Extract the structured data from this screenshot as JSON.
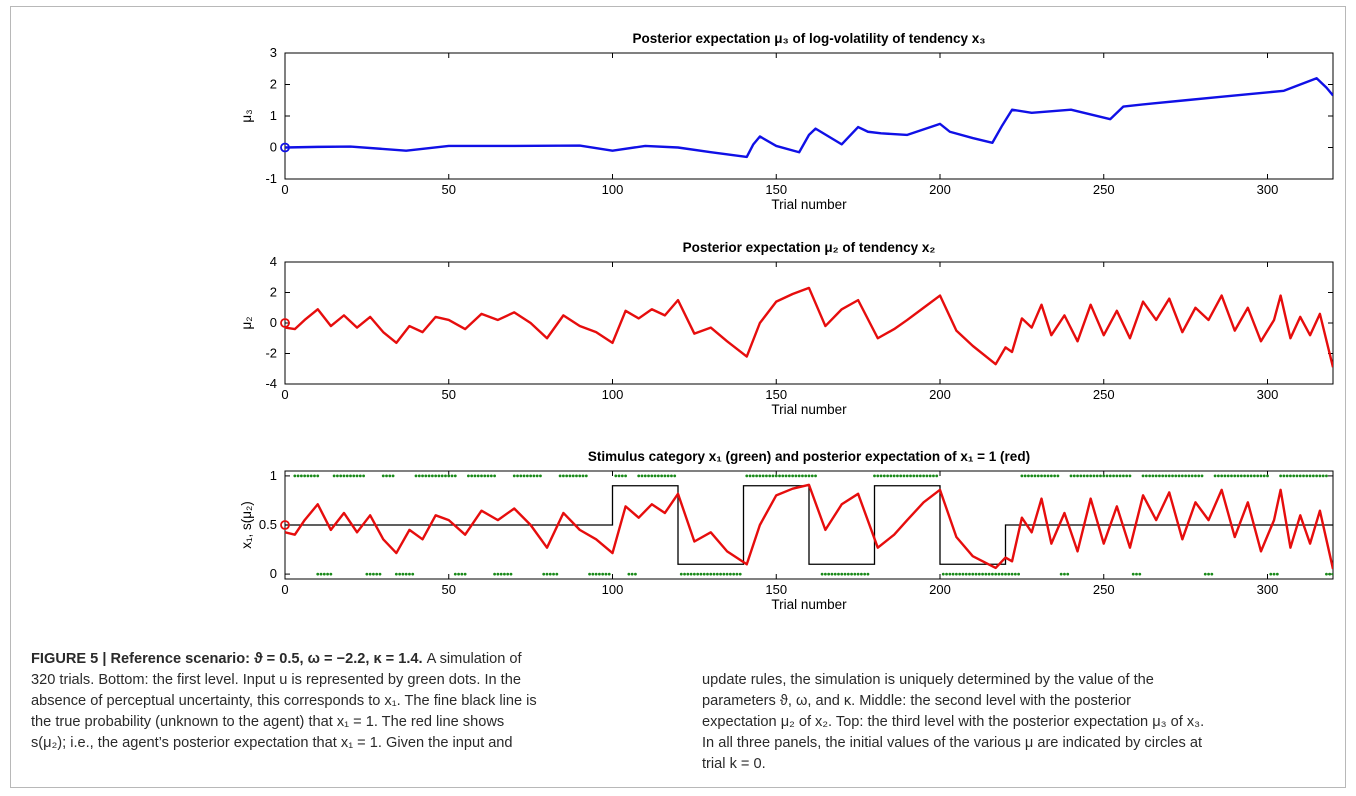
{
  "panels": [
    {
      "id": "mu3",
      "title": "Posterior expectation μ₃ of log-volatility of tendency x₃",
      "ylabel": "μ₃",
      "xlabel": "Trial number",
      "xlim": [
        0,
        320
      ],
      "ylim": [
        -1,
        3
      ],
      "xticks": [
        0,
        50,
        100,
        150,
        200,
        250,
        300
      ],
      "yticks": [
        -1,
        0,
        1,
        2,
        3
      ],
      "series_color": "#1010e6",
      "initial_value": 0,
      "chart_data": {
        "type": "line",
        "x": [
          0,
          10,
          20,
          37,
          50,
          70,
          90,
          100,
          110,
          120,
          130,
          141,
          143,
          145,
          150,
          157,
          160,
          162,
          170,
          175,
          178,
          182,
          190,
          200,
          203,
          210,
          216,
          219,
          222,
          228,
          240,
          252,
          256,
          265,
          275,
          285,
          295,
          305,
          310,
          315,
          318,
          320
        ],
        "y": [
          0,
          0.02,
          0.03,
          -0.1,
          0.05,
          0.05,
          0.06,
          -0.1,
          0.05,
          0.0,
          -0.15,
          -0.3,
          0.1,
          0.35,
          0.05,
          -0.15,
          0.4,
          0.6,
          0.1,
          0.65,
          0.5,
          0.45,
          0.4,
          0.75,
          0.5,
          0.3,
          0.15,
          0.7,
          1.2,
          1.1,
          1.2,
          0.9,
          1.3,
          1.4,
          1.5,
          1.6,
          1.7,
          1.8,
          2.0,
          2.2,
          1.9,
          1.65
        ]
      }
    },
    {
      "id": "mu2",
      "title": "Posterior expectation μ₂ of tendency x₂",
      "ylabel": "μ₂",
      "xlabel": "Trial number",
      "xlim": [
        0,
        320
      ],
      "ylim": [
        -4,
        4
      ],
      "xticks": [
        0,
        50,
        100,
        150,
        200,
        250,
        300
      ],
      "yticks": [
        -4,
        -2,
        0,
        2,
        4
      ],
      "series_color": "#e60d0d",
      "initial_value": 0,
      "chart_data": {
        "type": "line",
        "x": [
          0,
          3,
          6,
          10,
          14,
          18,
          22,
          26,
          30,
          34,
          38,
          42,
          46,
          50,
          55,
          60,
          65,
          70,
          75,
          80,
          85,
          90,
          95,
          100,
          104,
          108,
          112,
          116,
          120,
          125,
          130,
          135,
          141,
          145,
          150,
          155,
          160,
          165,
          170,
          175,
          181,
          186,
          190,
          195,
          200,
          205,
          210,
          217,
          220,
          222,
          225,
          228,
          231,
          234,
          238,
          242,
          246,
          250,
          254,
          258,
          262,
          266,
          270,
          274,
          278,
          282,
          286,
          290,
          294,
          298,
          302,
          304,
          307,
          310,
          313,
          316,
          320
        ],
        "y": [
          -0.3,
          -0.4,
          0.2,
          0.9,
          -0.2,
          0.5,
          -0.3,
          0.4,
          -0.6,
          -1.3,
          -0.2,
          -0.6,
          0.4,
          0.2,
          -0.4,
          0.6,
          0.2,
          0.7,
          0.0,
          -1.0,
          0.5,
          -0.2,
          -0.6,
          -1.3,
          0.8,
          0.3,
          0.9,
          0.5,
          1.5,
          -0.7,
          -0.3,
          -1.2,
          -2.2,
          0.0,
          1.4,
          1.9,
          2.3,
          -0.2,
          0.9,
          1.5,
          -1.0,
          -0.4,
          0.2,
          1.0,
          1.8,
          -0.5,
          -1.5,
          -2.7,
          -1.6,
          -1.9,
          0.3,
          -0.3,
          1.2,
          -0.8,
          0.5,
          -1.2,
          1.2,
          -0.8,
          0.8,
          -1.0,
          1.4,
          0.2,
          1.6,
          -0.6,
          1.0,
          0.2,
          1.8,
          -0.5,
          1.0,
          -1.2,
          0.2,
          1.8,
          -1.0,
          0.4,
          -0.8,
          0.6,
          -2.9
        ]
      }
    },
    {
      "id": "x1",
      "title": "Stimulus category x₁ (green) and posterior expectation of x₁ = 1 (red)",
      "ylabel": "x₁, s(μ₂)",
      "xlabel": "Trial number",
      "xlim": [
        0,
        320
      ],
      "ylim": [
        -0.05,
        1.05
      ],
      "xticks": [
        0,
        50,
        100,
        150,
        200,
        250,
        300
      ],
      "yticks": [
        0,
        0.5,
        1
      ],
      "series_color": "#e60d0d",
      "true_prob_color": "#000000",
      "input_color": "#1a8a1a",
      "initial_value": 0.5,
      "chart_data": {
        "type": "line",
        "true_probability": {
          "x": [
            0,
            100,
            100,
            120,
            120,
            140,
            140,
            160,
            160,
            180,
            180,
            200,
            200,
            220,
            220,
            320
          ],
          "y": [
            0.5,
            0.5,
            0.9,
            0.9,
            0.1,
            0.1,
            0.9,
            0.9,
            0.1,
            0.1,
            0.9,
            0.9,
            0.1,
            0.1,
            0.5,
            0.5
          ]
        },
        "input_runs_one": [
          [
            3,
            10
          ],
          [
            15,
            24
          ],
          [
            30,
            33
          ],
          [
            40,
            52
          ],
          [
            56,
            64
          ],
          [
            70,
            78
          ],
          [
            84,
            92
          ],
          [
            101,
            104
          ],
          [
            108,
            119
          ],
          [
            141,
            162
          ],
          [
            180,
            199
          ],
          [
            225,
            236
          ],
          [
            240,
            258
          ],
          [
            262,
            280
          ],
          [
            284,
            300
          ],
          [
            304,
            318
          ]
        ],
        "input_runs_zero": [
          [
            10,
            14
          ],
          [
            25,
            29
          ],
          [
            34,
            39
          ],
          [
            52,
            55
          ],
          [
            64,
            69
          ],
          [
            79,
            83
          ],
          [
            93,
            99
          ],
          [
            105,
            107
          ],
          [
            121,
            139
          ],
          [
            164,
            178
          ],
          [
            201,
            224
          ],
          [
            237,
            239
          ],
          [
            259,
            261
          ],
          [
            281,
            283
          ],
          [
            301,
            303
          ],
          [
            318,
            320
          ]
        ],
        "posterior_mu2_sigmoid_note": "s(μ₂)"
      }
    }
  ],
  "caption": {
    "label": "FIGURE 5 | Reference scenario:",
    "params": "ϑ = 0.5, ω = −2.2, κ = 1.4.",
    "text_left": [
      "A simulation of",
      "320 trials. Bottom: the first level. Input u is represented by green dots. In the",
      "absence of perceptual uncertainty, this corresponds to x₁. The fine black line is",
      "the true probability (unknown to the agent) that x₁ = 1. The red line shows",
      "s(μ₂); i.e., the agent’s posterior expectation that x₁ = 1. Given the input and"
    ],
    "text_right": [
      "update rules, the simulation is uniquely determined by the value of the",
      "parameters ϑ, ω, and κ. Middle: the second level with the posterior",
      "expectation μ₂ of x₂. Top: the third level with the posterior expectation μ₃ of x₃.",
      "In all three panels, the initial values of the various μ are indicated by circles at",
      "trial k = 0."
    ]
  }
}
